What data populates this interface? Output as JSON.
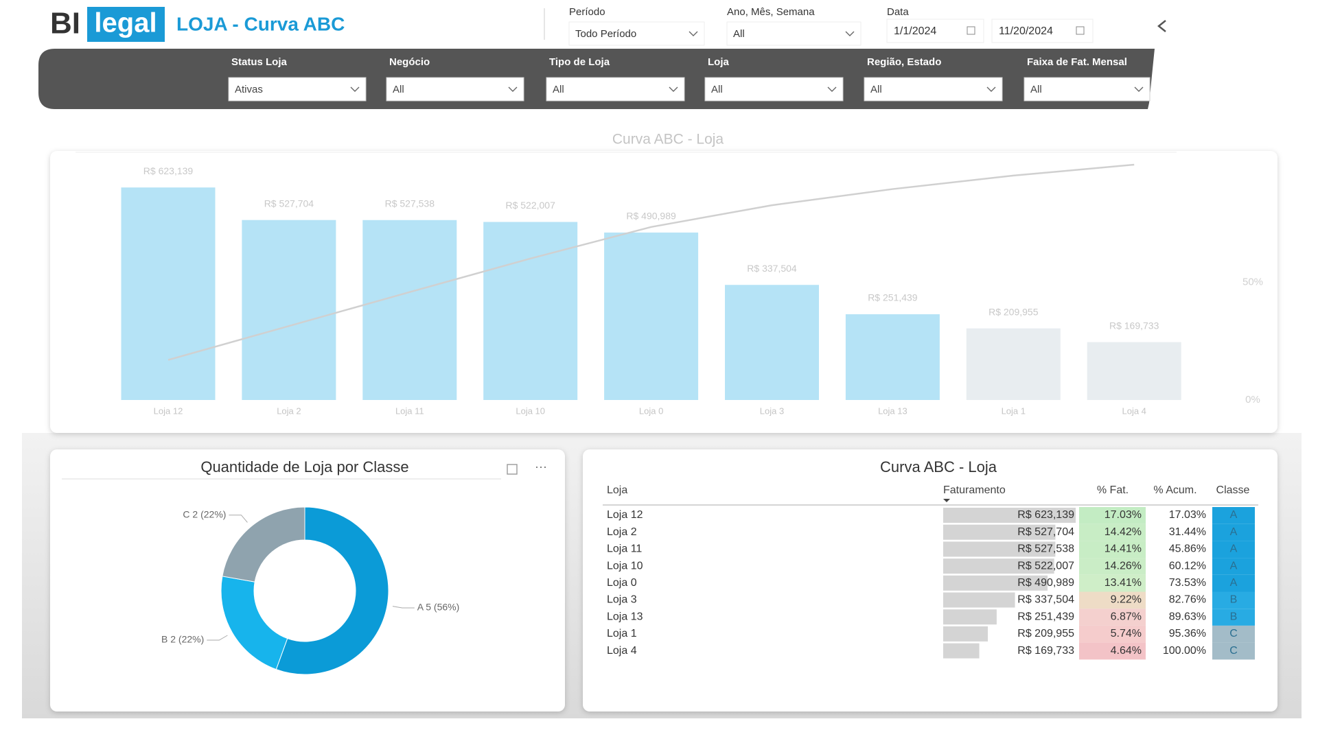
{
  "header": {
    "logo_bi": "BI",
    "logo_legal": "legal",
    "title": "LOJA - Curva ABC"
  },
  "filters": [
    {
      "label": "Período",
      "value": "Todo Período"
    },
    {
      "label": "Ano, Mês, Semana",
      "value": "All"
    }
  ],
  "date": {
    "label": "Data",
    "start": "1/1/2024",
    "end": "11/20/2024"
  },
  "slicers": [
    {
      "label": "Status Loja",
      "value": "Ativas"
    },
    {
      "label": "Negócio",
      "value": "All"
    },
    {
      "label": "Tipo de Loja",
      "value": "All"
    },
    {
      "label": "Loja",
      "value": "All"
    },
    {
      "label": "Região, Estado",
      "value": "All"
    },
    {
      "label": "Faixa de Fat. Mensal",
      "value": "All"
    }
  ],
  "bar_chart": {
    "type": "bar",
    "title": "Curva ABC - Loja",
    "categories": [
      "Loja 12",
      "Loja 2",
      "Loja 11",
      "Loja 10",
      "Loja 0",
      "Loja 3",
      "Loja 13",
      "Loja 1",
      "Loja 4"
    ],
    "values": [
      623139,
      527704,
      527538,
      522007,
      490989,
      337504,
      251439,
      209955,
      169733
    ],
    "value_labels": [
      "R$ 623,139",
      "R$ 527,704",
      "R$ 527,538",
      "R$ 522,007",
      "R$ 490,989",
      "R$ 337,504",
      "R$ 251,439",
      "R$ 209,955",
      "R$ 169,733"
    ],
    "colors": [
      "#b5e3f6",
      "#b5e3f6",
      "#b5e3f6",
      "#b5e3f6",
      "#b5e3f6",
      "#b5e3f6",
      "#b5e3f6",
      "#e8edf0",
      "#e8edf0"
    ],
    "ylim": [
      0,
      690000
    ],
    "line": {
      "values": [
        17.03,
        31.44,
        45.86,
        60.12,
        73.53,
        82.76,
        89.63,
        95.36,
        100
      ],
      "axis": "y2",
      "color": "#d0d0d0"
    },
    "y2lim": [
      0,
      100
    ],
    "y2ticks": [
      {
        "value": 0,
        "label": "0%"
      },
      {
        "value": 50,
        "label": "50%"
      }
    ]
  },
  "donut_chart": {
    "type": "donut",
    "title": "Quantidade de Loja por Classe",
    "values": [
      5,
      2,
      2
    ],
    "value_labels": [
      "A 5 (56%)",
      "B 2 (22%)",
      "C 2 (22%)"
    ],
    "colors": [
      "#0b9bd7",
      "#17b4ec",
      "#8fa3ae"
    ]
  },
  "table": {
    "title": "Curva ABC - Loja",
    "columns": [
      "Loja",
      "Faturamento",
      "% Fat.",
      "% Acum.",
      "Classe"
    ],
    "rows": [
      [
        "Loja 12",
        "R$ 623,139",
        "17.03%",
        "17.03%",
        "A"
      ],
      [
        "Loja 2",
        "R$ 527,704",
        "14.42%",
        "31.44%",
        "A"
      ],
      [
        "Loja 11",
        "R$ 527,538",
        "14.41%",
        "45.86%",
        "A"
      ],
      [
        "Loja 10",
        "R$ 522,007",
        "14.26%",
        "60.12%",
        "A"
      ],
      [
        "Loja 0",
        "R$ 490,989",
        "13.41%",
        "73.53%",
        "A"
      ],
      [
        "Loja 3",
        "R$ 337,504",
        "9.22%",
        "82.76%",
        "B"
      ],
      [
        "Loja 13",
        "R$ 251,439",
        "6.87%",
        "89.63%",
        "B"
      ],
      [
        "Loja 1",
        "R$ 209,955",
        "5.74%",
        "95.36%",
        "C"
      ],
      [
        "Loja 4",
        "R$ 169,733",
        "4.64%",
        "100.00%",
        "C"
      ]
    ],
    "pct_fat_colors": [
      "#c3ecc3",
      "#c8edc5",
      "#c8edc5",
      "#caedc6",
      "#cfeec8",
      "#eedcc6",
      "#f4d0ce",
      "#f5cccc",
      "#f3c3c7"
    ],
    "class_colors": {
      "A": "#1ba2dd",
      "B": "#28abe3",
      "C": "#a3bcc8"
    }
  }
}
